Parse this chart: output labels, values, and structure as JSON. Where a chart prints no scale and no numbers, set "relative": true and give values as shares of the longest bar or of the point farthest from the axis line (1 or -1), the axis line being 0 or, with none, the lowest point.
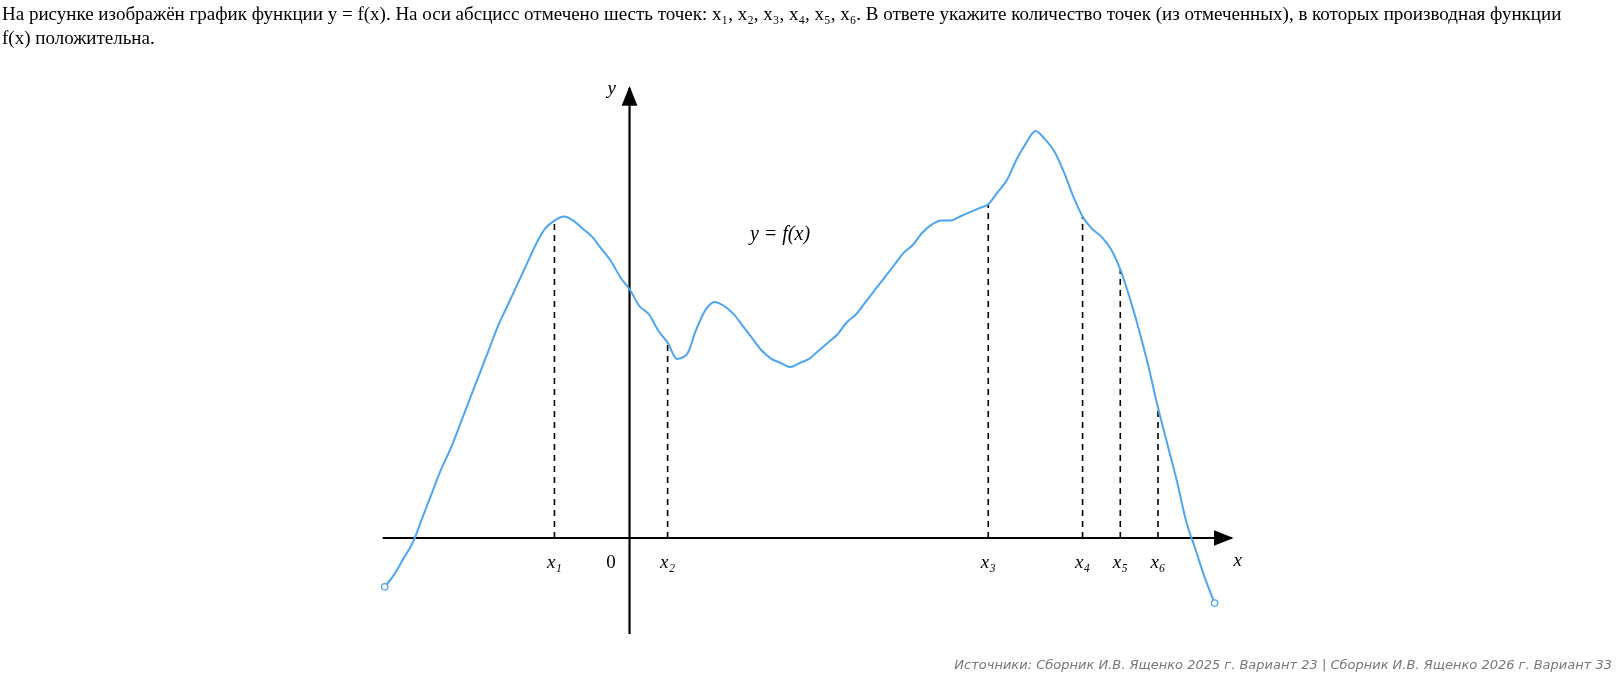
{
  "chart_data": {
    "type": "line",
    "title": "На рисунке изображён график функции y = f(x). На оси абсцисс отмечено шесть точек: x₁, x₂, x₃, x₄, x₅, x₆. В ответе укажите количество точек (из отмеченных), в которых производная функции f(x) положительна.",
    "xlabel": "x",
    "ylabel": "y",
    "relative": true,
    "annotations": [
      "y = f(x)",
      "Источники: Сборник И.В. Ященко 2025 г. Вариант 23 | Сборник И.В. Ященко 2026 г. Вариант 33"
    ],
    "categories": [
      null,
      null,
      null,
      null,
      null,
      null,
      null,
      null,
      null,
      null,
      null,
      null,
      null,
      null,
      null,
      null,
      null,
      null,
      "x₁",
      null,
      null,
      null,
      null,
      null,
      "0",
      null,
      null,
      null,
      null,
      null,
      "x₂",
      null,
      null,
      null,
      null,
      null,
      null,
      null,
      null,
      null,
      null,
      null,
      null,
      null,
      null,
      null,
      null,
      null,
      null,
      null,
      null,
      null,
      null,
      null,
      null,
      null,
      null,
      null,
      null,
      null,
      null,
      null,
      null,
      null,
      "x₃",
      null,
      null,
      null,
      null,
      null,
      null,
      null,
      null,
      null,
      "x₄",
      null,
      null,
      null,
      "x₅",
      null,
      null,
      null,
      "x₆",
      null,
      null,
      null,
      null,
      null,
      null
    ],
    "series": [
      {
        "color": "#4da6f0",
        "values": [
          -0.12,
          -0.09,
          -0.05,
          -0.01,
          0.05,
          0.11,
          0.17,
          0.22,
          0.28,
          0.34,
          0.4,
          0.46,
          0.52,
          0.57,
          0.62,
          0.67,
          0.72,
          0.76,
          0.78,
          0.79,
          0.78,
          0.76,
          0.74,
          0.71,
          0.68,
          0.64,
          0.61,
          0.57,
          0.55,
          0.51,
          0.48,
          0.44,
          0.45,
          0.51,
          0.56,
          0.58,
          0.57,
          0.55,
          0.52,
          0.49,
          0.46,
          0.44,
          0.43,
          0.42,
          0.43,
          0.44,
          0.46,
          0.48,
          0.5,
          0.53,
          0.55,
          0.58,
          0.61,
          0.64,
          0.67,
          0.7,
          0.72,
          0.75,
          0.77,
          0.78,
          0.78,
          0.79,
          0.8,
          0.81,
          0.82,
          0.85,
          0.88,
          0.93,
          0.97,
          1,
          0.98,
          0.95,
          0.9,
          0.84,
          0.79,
          0.76,
          0.74,
          0.71,
          0.66,
          0.59,
          0.51,
          0.42,
          0.32,
          0.23,
          0.14,
          0.04,
          -0.03,
          -0.1,
          -0.16
        ]
      }
    ]
  }
}
